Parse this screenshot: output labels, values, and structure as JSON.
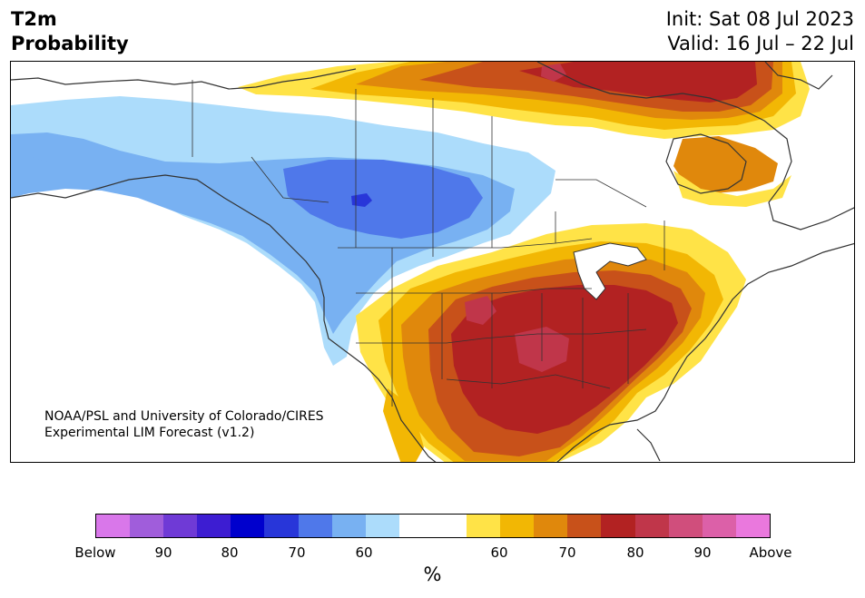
{
  "header": {
    "title_line1": "T2m",
    "title_line2": "Probability",
    "init": "Init: Sat 08 Jul 2023",
    "valid": "Valid: 16 Jul – 22 Jul"
  },
  "credit": {
    "line1": "NOAA/PSL and University of Colorado/CIRES",
    "line2": "Experimental LIM Forecast (v1.2)"
  },
  "colorbar": {
    "colors": [
      "#d977ea",
      "#a05ddb",
      "#6f3ad6",
      "#3d1dd2",
      "#0000cd",
      "#2836d9",
      "#4f78ea",
      "#78b1f2",
      "#acdcfb",
      "#ffffff",
      "#ffffff",
      "#ffe347",
      "#f2b704",
      "#e0880c",
      "#c8511a",
      "#b22222",
      "#c0364a",
      "#d04e7c",
      "#dc60a8",
      "#ea78dd"
    ],
    "labels": [
      "Below",
      "90",
      "80",
      "70",
      "60",
      "60",
      "70",
      "80",
      "90",
      "Above"
    ],
    "units": "%"
  },
  "map": {
    "colors": {
      "blue_light": "#acdcfb",
      "blue_mid": "#78b1f2",
      "blue_strong": "#4f78ea",
      "blue_deep": "#2836d9",
      "yellow": "#ffe347",
      "gold": "#f2b704",
      "orange": "#e0880c",
      "burnt": "#c8511a",
      "red": "#b22222",
      "crimson": "#c0364a",
      "pink": "#d04e7c",
      "boundary": "#333333"
    }
  }
}
